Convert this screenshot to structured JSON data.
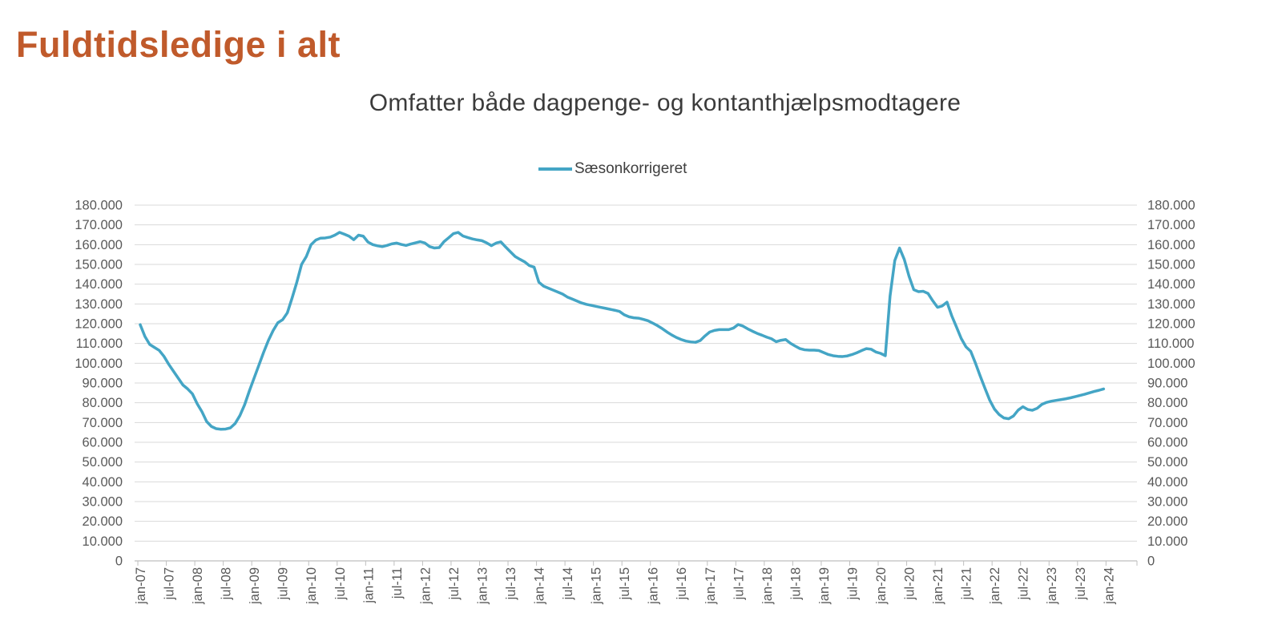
{
  "title": "Fuldtidsledige i alt",
  "subtitle": "Omfatter både dagpenge- og kontanthjælpsmodtagere",
  "legend": {
    "label": "Sæsonkorrigeret"
  },
  "colors": {
    "title": "#C05A2B",
    "subtitle": "#3B3B3B",
    "series": "#44A5C5",
    "gridline": "#D9D9D9",
    "axis_line": "#BFBFBF",
    "axis_label": "#595959",
    "legend_label": "#3F3F3F"
  },
  "chart_data": {
    "type": "line",
    "title": "Omfatter både dagpenge- og kontanthjælpsmodtagere",
    "legend_position": "top",
    "grid": true,
    "ylim": [
      0,
      180000
    ],
    "y_tick_step": 10000,
    "y_tick_labels": [
      "0",
      "10.000",
      "20.000",
      "30.000",
      "40.000",
      "50.000",
      "60.000",
      "70.000",
      "80.000",
      "90.000",
      "100.000",
      "110.000",
      "120.000",
      "130.000",
      "140.000",
      "150.000",
      "160.000",
      "170.000",
      "180.000"
    ],
    "x_tick_labels": [
      "jan-07",
      "jul-07",
      "jan-08",
      "jul-08",
      "jan-09",
      "jul-09",
      "jan-10",
      "jul-10",
      "jan-11",
      "jul-11",
      "jan-12",
      "jul-12",
      "jan-13",
      "jul-13",
      "jan-14",
      "jul-14",
      "jan-15",
      "jul-15",
      "jan-16",
      "jul-16",
      "jan-17",
      "jul-17",
      "jan-18",
      "jul-18",
      "jan-19",
      "jul-19",
      "jan-20",
      "jul-20",
      "jan-21",
      "jul-21",
      "jan-22",
      "jul-22",
      "jan-23",
      "jul-23",
      "jan-24"
    ],
    "x_months_start": "jan-07",
    "x_months_end": "dec-23",
    "series": [
      {
        "name": "Sæsonkorrigeret",
        "color": "#44A5C5",
        "values": [
          119500,
          113500,
          109500,
          108000,
          106500,
          103500,
          99500,
          96000,
          92500,
          89000,
          87000,
          84500,
          79500,
          75500,
          70500,
          68000,
          66900,
          66600,
          66700,
          67300,
          69500,
          73500,
          79000,
          86000,
          92500,
          99000,
          105500,
          111500,
          116500,
          120500,
          122000,
          125500,
          133000,
          141000,
          150000,
          154000,
          160000,
          162300,
          163300,
          163400,
          163800,
          164800,
          166200,
          165300,
          164300,
          162500,
          164800,
          164300,
          161300,
          160000,
          159400,
          159000,
          159600,
          160400,
          160800,
          160100,
          159600,
          160300,
          160900,
          161500,
          160800,
          159000,
          158300,
          158500,
          161500,
          163500,
          165600,
          166200,
          164400,
          163600,
          162900,
          162400,
          162000,
          160900,
          159500,
          160800,
          161400,
          158800,
          156400,
          154000,
          152600,
          151300,
          149400,
          148600,
          141000,
          139000,
          138000,
          137000,
          136000,
          135000,
          133500,
          132500,
          131500,
          130500,
          129800,
          129300,
          128800,
          128300,
          127800,
          127300,
          126800,
          126200,
          124500,
          123500,
          123000,
          122800,
          122200,
          121500,
          120300,
          119000,
          117500,
          115800,
          114300,
          113000,
          112000,
          111200,
          110800,
          110600,
          111500,
          113800,
          115800,
          116600,
          117000,
          117000,
          117000,
          117800,
          119600,
          118800,
          117400,
          116200,
          115100,
          114200,
          113200,
          112400,
          110900,
          111600,
          112000,
          110100,
          108700,
          107400,
          106800,
          106600,
          106600,
          106400,
          105400,
          104400,
          103800,
          103500,
          103400,
          103700,
          104400,
          105300,
          106400,
          107400,
          107100,
          105700,
          105000,
          103800,
          134000,
          152000,
          158300,
          152500,
          144000,
          137200,
          136200,
          136400,
          135300,
          131600,
          128300,
          129000,
          130900,
          124000,
          118300,
          112500,
          108300,
          106000,
          100000,
          93500,
          87300,
          81300,
          76800,
          74000,
          72300,
          71900,
          73300,
          76300,
          78000,
          76600,
          76200,
          77200,
          79200,
          80200,
          80800,
          81200,
          81600,
          82000,
          82500,
          83100,
          83700,
          84300,
          85000,
          85700,
          86300,
          87000
        ]
      }
    ]
  }
}
